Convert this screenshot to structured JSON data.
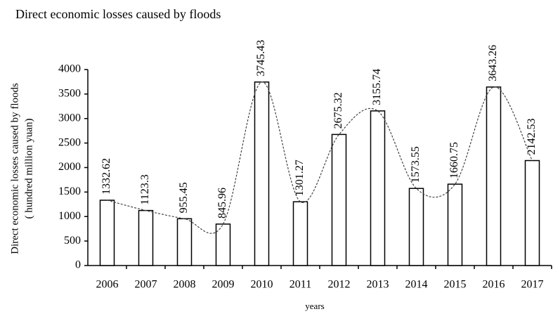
{
  "chart_data": {
    "type": "bar",
    "title": "Direct economic losses caused by floods",
    "y_label": [
      "Direct economic losses caused by floods",
      "( hundred million yuan)"
    ],
    "x_label": "years",
    "categories": [
      "2006",
      "2007",
      "2008",
      "2009",
      "2010",
      "2011",
      "2012",
      "2013",
      "2014",
      "2015",
      "2016",
      "2017"
    ],
    "values": [
      1332.62,
      1123.3,
      955.45,
      845.96,
      3745.43,
      1301.27,
      2675.32,
      3155.74,
      1573.55,
      1660.75,
      3643.26,
      2142.53
    ],
    "color": "#ffffff",
    "edge_color": "#000000",
    "trend_line": true,
    "ylim": [
      0,
      4000
    ],
    "yticks": [
      0,
      500,
      1000,
      1500,
      2000,
      2500,
      3000,
      3500,
      4000
    ]
  }
}
